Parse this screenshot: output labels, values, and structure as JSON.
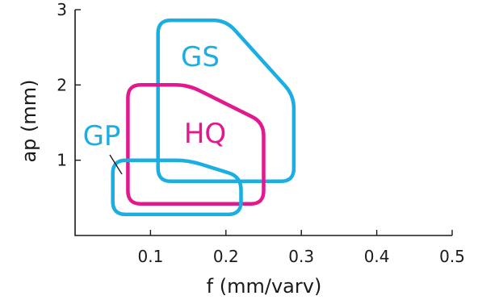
{
  "chart_data": {
    "type": "area",
    "xlabel": "f  (mm/varv)",
    "ylabel": "ap (mm)",
    "xlim": [
      0,
      0.5
    ],
    "ylim": [
      0,
      3
    ],
    "xticks": [
      0.1,
      0.2,
      0.3,
      0.4,
      0.5
    ],
    "xtick_labels": [
      "0.1",
      "0.2",
      "0.3",
      "0.4",
      "0.5"
    ],
    "yticks": [
      1,
      2,
      3
    ],
    "ytick_labels": [
      "1",
      "2",
      "3"
    ],
    "grid": false,
    "regions": [
      {
        "name": "GS",
        "color": "#1aaee3",
        "points": [
          [
            0.11,
            0.72
          ],
          [
            0.11,
            2.86
          ],
          [
            0.2,
            2.86
          ],
          [
            0.29,
            1.86
          ],
          [
            0.29,
            0.72
          ]
        ]
      },
      {
        "name": "HQ",
        "color": "#e3188f",
        "points": [
          [
            0.07,
            0.42
          ],
          [
            0.07,
            2.0
          ],
          [
            0.15,
            2.0
          ],
          [
            0.25,
            1.5
          ],
          [
            0.25,
            0.42
          ]
        ]
      },
      {
        "name": "GP",
        "color": "#1aaee3",
        "points": [
          [
            0.05,
            0.28
          ],
          [
            0.05,
            1.0
          ],
          [
            0.15,
            1.0
          ],
          [
            0.22,
            0.78
          ],
          [
            0.22,
            0.28
          ]
        ]
      }
    ]
  }
}
